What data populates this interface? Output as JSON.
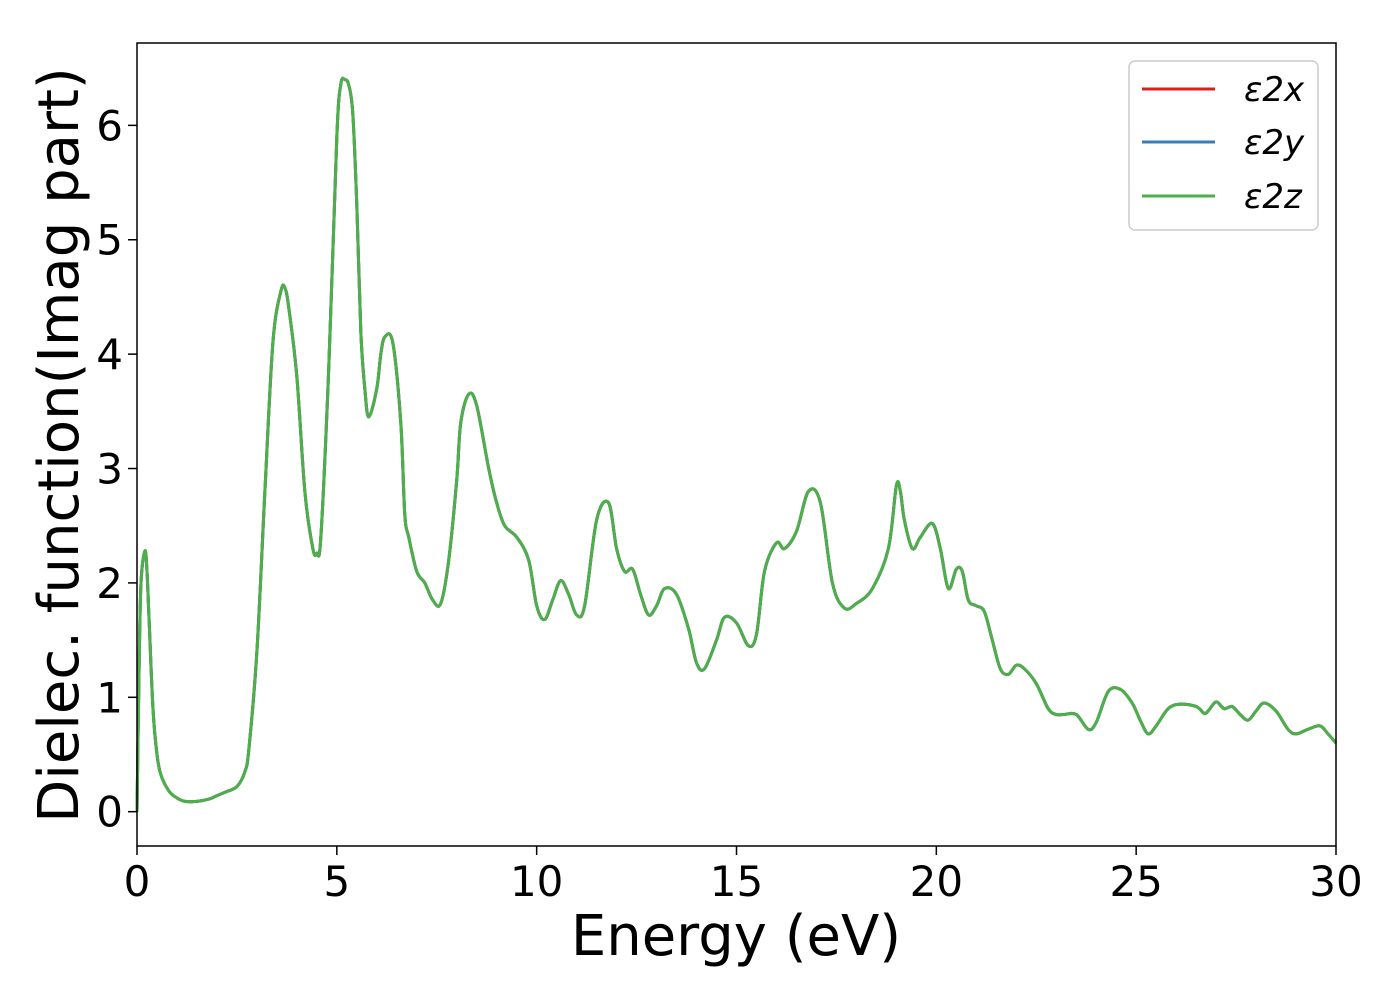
{
  "chart_data": {
    "type": "line",
    "title": "",
    "xlabel": "Energy (eV)",
    "ylabel": "Dielec. function(Imag part)",
    "xlim": [
      0,
      30
    ],
    "ylim": [
      -0.3,
      6.72
    ],
    "xticks": [
      0,
      5,
      10,
      15,
      20,
      25,
      30
    ],
    "yticks": [
      0,
      1,
      2,
      3,
      4,
      5,
      6
    ],
    "grid": false,
    "legend_position": "top-right",
    "series": [
      {
        "name": "ε2x",
        "color": "#e41a1c"
      },
      {
        "name": "ε2y",
        "color": "#377eb8"
      },
      {
        "name": "ε2z",
        "color": "#4daf4a"
      }
    ],
    "x": [
      0.0,
      0.05,
      0.1,
      0.2,
      0.25,
      0.3,
      0.4,
      0.5,
      0.6,
      0.8,
      1.0,
      1.2,
      1.5,
      1.8,
      2.0,
      2.2,
      2.5,
      2.7,
      2.8,
      3.0,
      3.2,
      3.4,
      3.6,
      3.7,
      3.8,
      4.0,
      4.2,
      4.4,
      4.5,
      4.6,
      4.8,
      5.0,
      5.1,
      5.2,
      5.3,
      5.4,
      5.5,
      5.6,
      5.7,
      5.8,
      6.0,
      6.1,
      6.2,
      6.4,
      6.6,
      6.7,
      6.8,
      7.0,
      7.2,
      7.4,
      7.6,
      7.8,
      8.0,
      8.1,
      8.3,
      8.5,
      8.8,
      9.0,
      9.2,
      9.5,
      9.8,
      10.0,
      10.2,
      10.4,
      10.6,
      10.8,
      11.0,
      11.2,
      11.5,
      11.8,
      12.0,
      12.2,
      12.4,
      12.6,
      12.8,
      13.0,
      13.2,
      13.5,
      13.8,
      14.0,
      14.2,
      14.5,
      14.7,
      15.0,
      15.3,
      15.5,
      15.7,
      16.0,
      16.2,
      16.5,
      16.8,
      17.1,
      17.4,
      17.7,
      18.0,
      18.4,
      18.8,
      19.0,
      19.1,
      19.2,
      19.4,
      19.6,
      19.9,
      20.1,
      20.3,
      20.5,
      20.65,
      20.8,
      21.0,
      21.2,
      21.4,
      21.6,
      21.8,
      22.0,
      22.2,
      22.5,
      22.8,
      23.0,
      23.2,
      23.5,
      23.8,
      24.0,
      24.3,
      24.6,
      24.9,
      25.1,
      25.3,
      25.5,
      25.8,
      26.1,
      26.5,
      26.7,
      26.8,
      27.0,
      27.2,
      27.4,
      27.6,
      27.8,
      28.0,
      28.2,
      28.5,
      28.8,
      29.0,
      29.3,
      29.6,
      29.8,
      30.0
    ],
    "y": [
      0.0,
      1.2,
      2.0,
      2.28,
      2.1,
      1.7,
      0.9,
      0.5,
      0.32,
      0.18,
      0.12,
      0.09,
      0.09,
      0.11,
      0.14,
      0.17,
      0.22,
      0.35,
      0.55,
      1.4,
      2.8,
      4.1,
      4.55,
      4.58,
      4.4,
      3.8,
      2.8,
      2.3,
      2.26,
      2.4,
      3.9,
      5.9,
      6.36,
      6.4,
      6.35,
      6.1,
      5.3,
      4.2,
      3.7,
      3.45,
      3.7,
      4.0,
      4.15,
      4.1,
      3.4,
      2.6,
      2.4,
      2.1,
      2.0,
      1.85,
      1.82,
      2.2,
      2.9,
      3.4,
      3.65,
      3.55,
      3.0,
      2.7,
      2.5,
      2.4,
      2.2,
      1.8,
      1.68,
      1.85,
      2.02,
      1.9,
      1.72,
      1.8,
      2.55,
      2.7,
      2.3,
      2.1,
      2.12,
      1.9,
      1.72,
      1.8,
      1.95,
      1.9,
      1.6,
      1.3,
      1.25,
      1.5,
      1.7,
      1.65,
      1.45,
      1.55,
      2.1,
      2.35,
      2.3,
      2.45,
      2.8,
      2.7,
      2.0,
      1.78,
      1.82,
      1.95,
      2.3,
      2.85,
      2.8,
      2.55,
      2.3,
      2.4,
      2.52,
      2.3,
      1.95,
      2.12,
      2.1,
      1.85,
      1.8,
      1.75,
      1.5,
      1.25,
      1.2,
      1.28,
      1.25,
      1.12,
      0.9,
      0.85,
      0.85,
      0.85,
      0.72,
      0.78,
      1.05,
      1.07,
      0.95,
      0.8,
      0.68,
      0.75,
      0.9,
      0.94,
      0.92,
      0.86,
      0.88,
      0.96,
      0.9,
      0.92,
      0.85,
      0.8,
      0.88,
      0.95,
      0.88,
      0.72,
      0.68,
      0.72,
      0.75,
      0.68,
      0.6
    ]
  }
}
